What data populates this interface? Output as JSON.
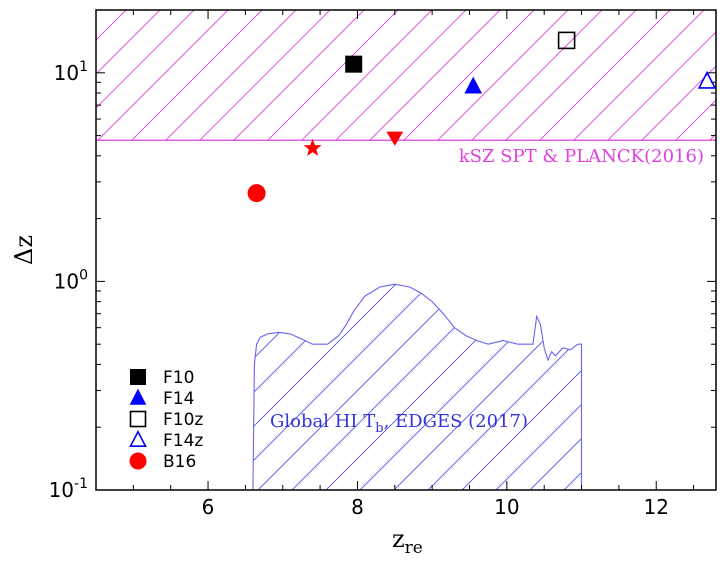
{
  "chart_data": {
    "type": "scatter",
    "xlabel": "z",
    "xlabel_sub": "re",
    "ylabel": "Δz",
    "xlim": [
      4.5,
      12.8
    ],
    "ylim": [
      0.1,
      20
    ],
    "yscale": "log",
    "xticks": [
      6,
      8,
      10,
      12
    ],
    "xtick_labels": [
      "6",
      "8",
      "10",
      "12"
    ],
    "yticks": [
      0.1,
      1,
      10
    ],
    "ytick_labels": [
      {
        "base": "10",
        "exp": "-1"
      },
      {
        "base": "10",
        "exp": "0"
      },
      {
        "base": "10",
        "exp": "1"
      }
    ],
    "series": [
      {
        "name": "F10",
        "marker": "square",
        "filled": true,
        "color": "#000000",
        "points": [
          [
            7.95,
            11.0
          ]
        ]
      },
      {
        "name": "F14",
        "marker": "triangle-up",
        "filled": true,
        "color": "#0000ff",
        "points": [
          [
            9.55,
            8.6
          ]
        ]
      },
      {
        "name": "F10z",
        "marker": "square",
        "filled": false,
        "color": "#000000",
        "points": [
          [
            10.8,
            14.3
          ]
        ]
      },
      {
        "name": "F14z",
        "marker": "triangle-up",
        "filled": false,
        "color": "#0000ff",
        "points": [
          [
            12.68,
            9.1
          ]
        ]
      },
      {
        "name": "B16",
        "marker": "circle",
        "filled": true,
        "color": "#ff0000",
        "points": [
          [
            6.65,
            2.65
          ]
        ]
      },
      {
        "name": "",
        "marker": "star",
        "filled": true,
        "color": "#ff0000",
        "points": [
          [
            7.4,
            4.35
          ]
        ],
        "in_legend": false
      },
      {
        "name": "",
        "marker": "triangle-down",
        "filled": true,
        "color": "#ff0000",
        "points": [
          [
            8.5,
            4.9
          ]
        ],
        "in_legend": false
      }
    ],
    "regions": [
      {
        "name": "kSZ SPT & PLANCK(2016)",
        "color": "#e040e0",
        "x_range": [
          4.5,
          12.8
        ],
        "y_range": [
          4.75,
          20
        ],
        "hatch": "diagonal"
      },
      {
        "name": "Global HI T_b, EDGES (2017)",
        "color": "#5555ee",
        "hatch": "diagonal",
        "upper_boundary": [
          [
            6.6,
            0.1
          ],
          [
            6.62,
            0.4
          ],
          [
            6.65,
            0.5
          ],
          [
            6.7,
            0.54
          ],
          [
            6.8,
            0.56
          ],
          [
            6.95,
            0.57
          ],
          [
            7.1,
            0.56
          ],
          [
            7.25,
            0.53
          ],
          [
            7.4,
            0.5
          ],
          [
            7.6,
            0.5
          ],
          [
            7.75,
            0.55
          ],
          [
            7.85,
            0.62
          ],
          [
            7.95,
            0.72
          ],
          [
            8.1,
            0.85
          ],
          [
            8.3,
            0.94
          ],
          [
            8.5,
            0.97
          ],
          [
            8.7,
            0.94
          ],
          [
            8.85,
            0.88
          ],
          [
            9.0,
            0.8
          ],
          [
            9.15,
            0.7
          ],
          [
            9.3,
            0.6
          ],
          [
            9.45,
            0.55
          ],
          [
            9.6,
            0.52
          ],
          [
            9.75,
            0.5
          ],
          [
            9.95,
            0.52
          ],
          [
            10.15,
            0.5
          ],
          [
            10.35,
            0.5
          ],
          [
            10.4,
            0.68
          ],
          [
            10.45,
            0.62
          ],
          [
            10.5,
            0.48
          ],
          [
            10.55,
            0.42
          ],
          [
            10.6,
            0.46
          ],
          [
            10.65,
            0.44
          ],
          [
            10.75,
            0.48
          ],
          [
            10.85,
            0.47
          ],
          [
            10.95,
            0.5
          ],
          [
            11.0,
            0.5
          ],
          [
            11.0,
            0.1
          ]
        ]
      }
    ],
    "annotations": [
      {
        "text": "kSZ SPT & PLANCK(2016)",
        "color": "#e040e0"
      },
      {
        "text_parts": [
          "Global HI T",
          "b",
          ",  EDGES (2017)"
        ],
        "color": "#3333dd"
      }
    ],
    "legend_position": "lower-left"
  }
}
